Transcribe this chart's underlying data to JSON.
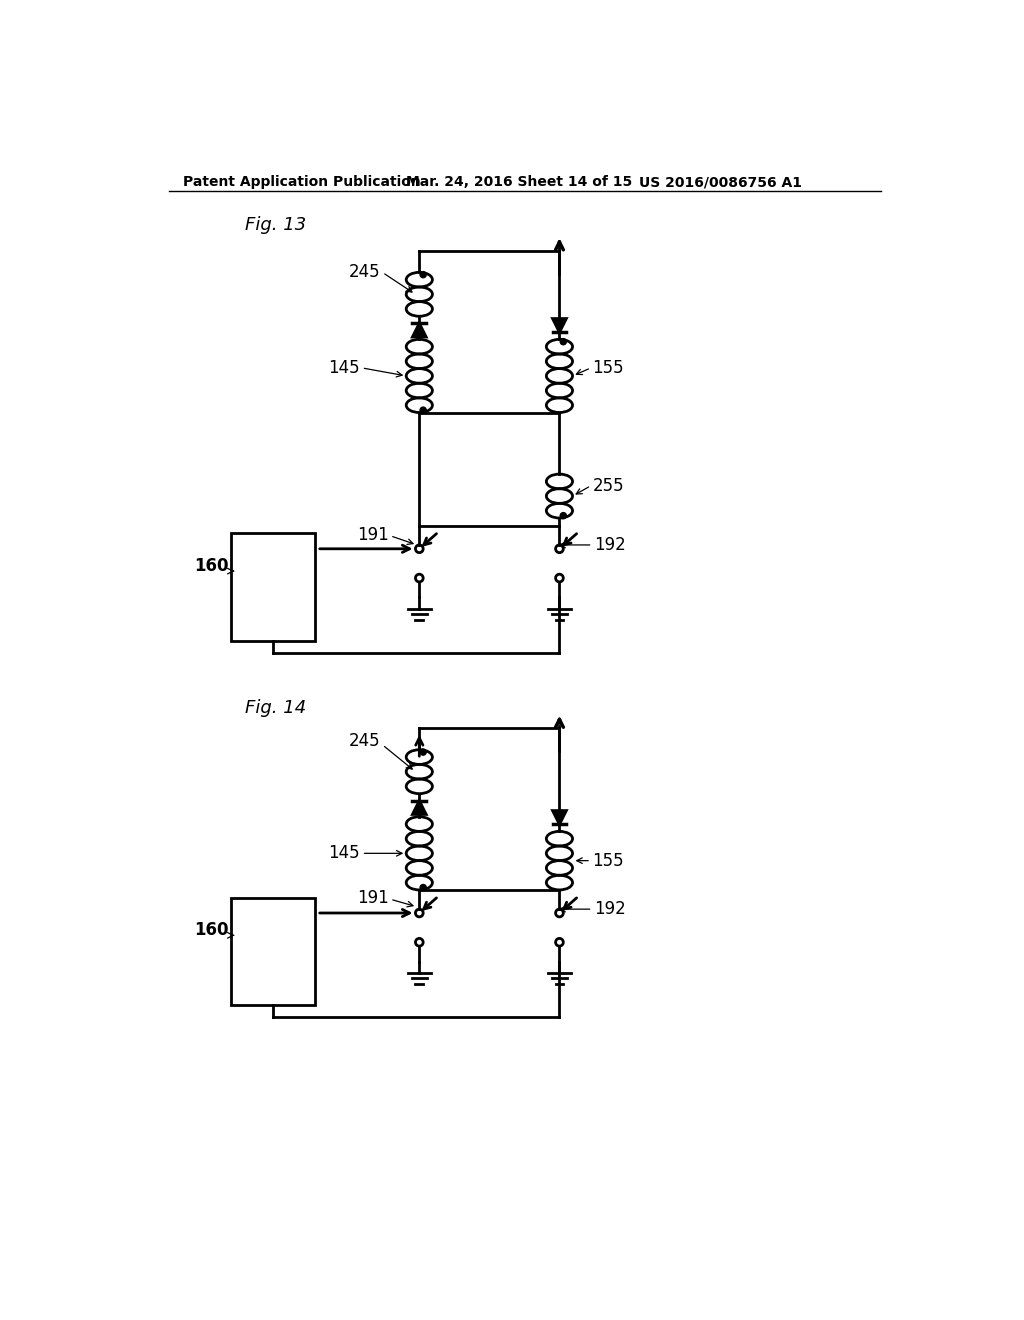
{
  "title_header": "Patent Application Publication",
  "date_header": "Mar. 24, 2016 Sheet 14 of 15",
  "patent_header": "US 2016/0086756 A1",
  "fig13_label": "Fig. 13",
  "fig14_label": "Fig. 14",
  "background_color": "#ffffff",
  "line_color": "#000000",
  "line_width": 2.0
}
